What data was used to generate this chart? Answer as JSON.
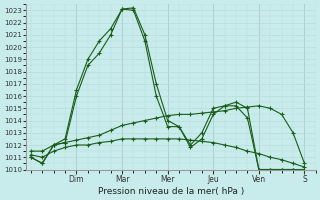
{
  "title": "",
  "xlabel": "Pression niveau de la mer( hPa )",
  "ylabel": "",
  "bg_color": "#c8ecec",
  "grid_color": "#b8dada",
  "line_color": "#1a5c1a",
  "ylim": [
    1010,
    1023.5
  ],
  "yticks": [
    1010,
    1011,
    1012,
    1013,
    1014,
    1015,
    1016,
    1017,
    1018,
    1019,
    1020,
    1021,
    1022,
    1023
  ],
  "day_labels": [
    "Dim",
    "Mar",
    "Mer",
    "Jeu",
    "Ven",
    "S"
  ],
  "day_positions": [
    2.0,
    4.0,
    6.0,
    8.0,
    10.0,
    12.0
  ],
  "series": [
    {
      "x": [
        0.0,
        0.5,
        1.0,
        1.5,
        2.0,
        2.5,
        3.0,
        3.5,
        4.0,
        4.5,
        5.0,
        5.5,
        6.0,
        6.5,
        7.0,
        7.5,
        8.0,
        8.5,
        9.0,
        9.5,
        10.0,
        10.5,
        11.0,
        11.5,
        12.0
      ],
      "y": [
        1011.0,
        1010.5,
        1012.0,
        1012.2,
        1016.0,
        1018.5,
        1019.5,
        1021.0,
        1023.1,
        1023.2,
        1021.0,
        1017.0,
        1014.0,
        1013.5,
        1011.8,
        1012.5,
        1014.5,
        1015.2,
        1015.2,
        1014.2,
        1010.0,
        1010.0,
        1010.0,
        1010.0,
        1010.0
      ]
    },
    {
      "x": [
        0.0,
        0.5,
        1.0,
        1.5,
        2.0,
        2.5,
        3.0,
        3.5,
        4.0,
        4.5,
        5.0,
        5.5,
        6.0,
        6.5,
        7.0,
        7.5,
        8.0,
        8.5,
        9.0,
        9.5,
        10.0,
        10.5,
        11.0,
        11.5,
        12.0
      ],
      "y": [
        1011.0,
        1010.5,
        1012.0,
        1012.5,
        1016.5,
        1019.0,
        1020.5,
        1021.5,
        1023.1,
        1023.0,
        1020.5,
        1016.0,
        1013.5,
        1013.5,
        1012.0,
        1013.0,
        1015.0,
        1015.2,
        1015.5,
        1015.0,
        1010.0,
        1010.0,
        1010.0,
        1010.0,
        1009.8
      ]
    },
    {
      "x": [
        0.0,
        0.5,
        1.0,
        1.5,
        2.0,
        2.5,
        3.0,
        3.5,
        4.0,
        4.5,
        5.0,
        5.5,
        6.0,
        6.5,
        7.0,
        7.5,
        8.0,
        8.5,
        9.0,
        9.5,
        10.0,
        10.5,
        11.0,
        11.5,
        12.0
      ],
      "y": [
        1011.5,
        1011.5,
        1012.0,
        1012.2,
        1012.4,
        1012.6,
        1012.8,
        1013.2,
        1013.6,
        1013.8,
        1014.0,
        1014.2,
        1014.4,
        1014.5,
        1014.5,
        1014.6,
        1014.7,
        1014.8,
        1015.0,
        1015.1,
        1015.2,
        1015.0,
        1014.5,
        1013.0,
        1010.5
      ]
    },
    {
      "x": [
        0.0,
        0.5,
        1.0,
        1.5,
        2.0,
        2.5,
        3.0,
        3.5,
        4.0,
        4.5,
        5.0,
        5.5,
        6.0,
        6.5,
        7.0,
        7.5,
        8.0,
        8.5,
        9.0,
        9.5,
        10.0,
        10.5,
        11.0,
        11.5,
        12.0
      ],
      "y": [
        1011.2,
        1011.0,
        1011.5,
        1011.8,
        1012.0,
        1012.0,
        1012.2,
        1012.3,
        1012.5,
        1012.5,
        1012.5,
        1012.5,
        1012.5,
        1012.5,
        1012.4,
        1012.3,
        1012.2,
        1012.0,
        1011.8,
        1011.5,
        1011.3,
        1011.0,
        1010.8,
        1010.5,
        1010.2
      ]
    }
  ]
}
